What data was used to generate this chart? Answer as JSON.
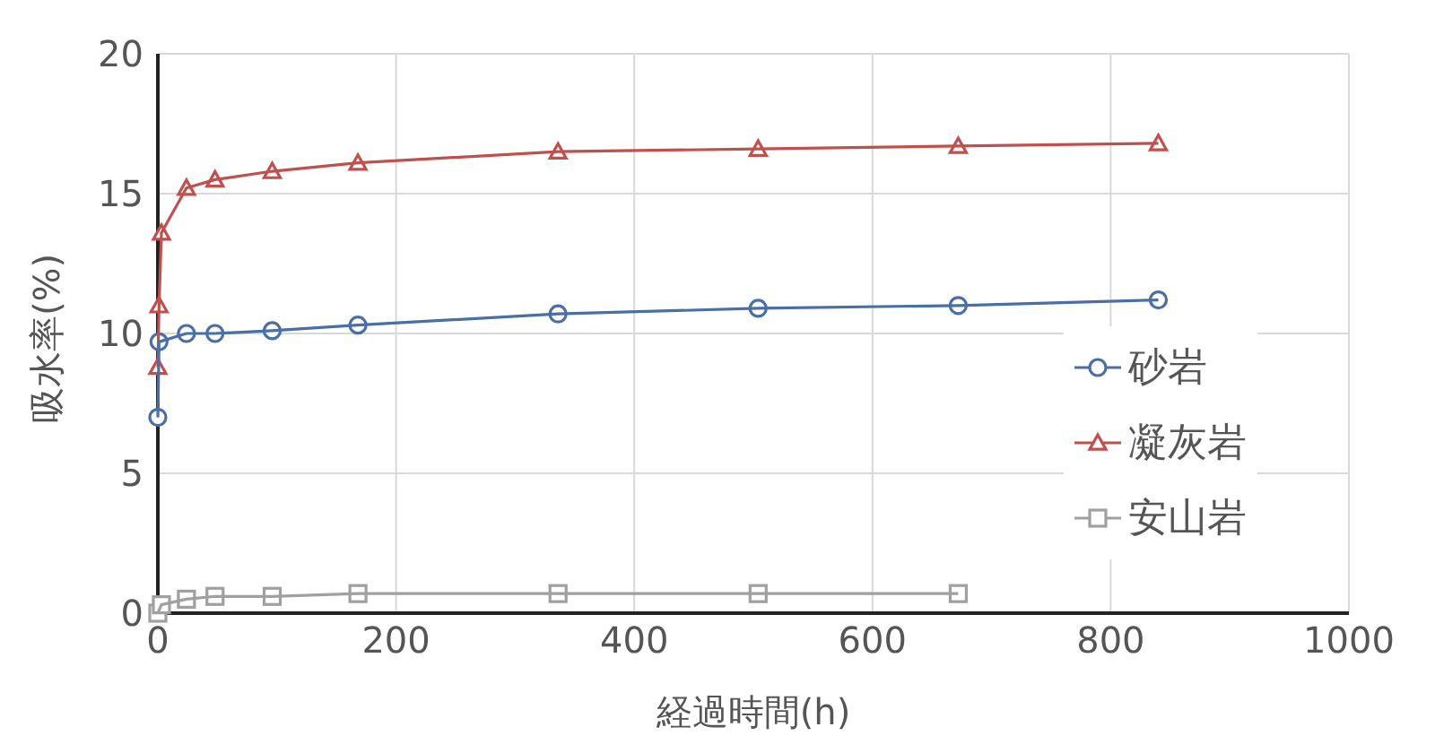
{
  "chart_data": {
    "type": "line",
    "xlabel": "経過時間(h)",
    "ylabel": "吸水率(%)",
    "xlim": [
      0,
      1000
    ],
    "xticks": [
      0,
      200,
      400,
      600,
      800,
      1000
    ],
    "ylim": [
      0,
      20
    ],
    "yticks": [
      0,
      5,
      10,
      15,
      20
    ],
    "grid": true,
    "legend": "right",
    "series": [
      {
        "name": "砂岩",
        "color": "#4a6fa5",
        "marker": "circle",
        "x": [
          0,
          1,
          24,
          48,
          96,
          168,
          336,
          504,
          672,
          840
        ],
        "values": [
          7.0,
          9.7,
          10.0,
          10.0,
          10.1,
          10.3,
          10.7,
          10.9,
          11.0,
          11.2
        ]
      },
      {
        "name": "凝灰岩",
        "color": "#c0504d",
        "marker": "triangle",
        "x": [
          0,
          1,
          3,
          24,
          48,
          96,
          168,
          336,
          504,
          672,
          840
        ],
        "values": [
          8.8,
          11.0,
          13.6,
          15.2,
          15.5,
          15.8,
          16.1,
          16.5,
          16.6,
          16.7,
          16.8
        ]
      },
      {
        "name": "安山岩",
        "color": "#a0a0a0",
        "marker": "square",
        "x": [
          0,
          3,
          24,
          48,
          96,
          168,
          336,
          504,
          672
        ],
        "values": [
          0,
          0.3,
          0.5,
          0.6,
          0.6,
          0.7,
          0.7,
          0.7,
          0.7
        ]
      }
    ]
  }
}
